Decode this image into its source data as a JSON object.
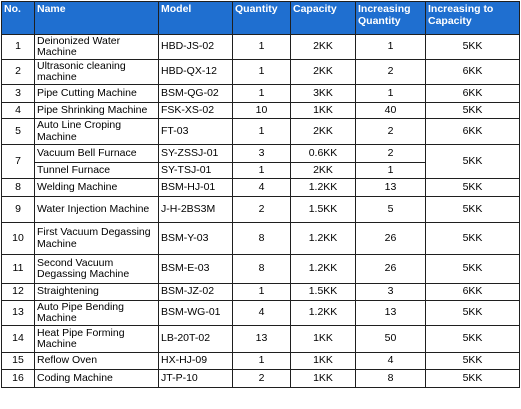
{
  "headers": {
    "no": "No.",
    "name": "Name",
    "model": "Model",
    "quantity": "Quantity",
    "capacity": "Capacity",
    "increasing_quantity": "Increasing Quantity",
    "increasing_capacity": "Increasing to Capacity"
  },
  "rows": [
    {
      "no": "1",
      "name": "Deinonized Water Machine",
      "model": "HBD-JS-02",
      "quantity": "1",
      "capacity": "2KK",
      "increasing_quantity": "1",
      "increasing_capacity": "5KK"
    },
    {
      "no": "2",
      "name": "Ultrasonic cleaning machine",
      "model": "HBD-QX-12",
      "quantity": "1",
      "capacity": "2KK",
      "increasing_quantity": "2",
      "increasing_capacity": "6KK"
    },
    {
      "no": "3",
      "name": "Pipe Cutting Machine",
      "model": "BSM-QG-02",
      "quantity": "1",
      "capacity": "3KK",
      "increasing_quantity": "1",
      "increasing_capacity": "6KK"
    },
    {
      "no": "4",
      "name": "Pipe Shrinking Machine",
      "model": "FSK-XS-02",
      "quantity": "10",
      "capacity": "1KK",
      "increasing_quantity": "40",
      "increasing_capacity": "5KK"
    },
    {
      "no": "5",
      "name": "Auto Line Croping Machine",
      "model": "FT-03",
      "quantity": "1",
      "capacity": "2KK",
      "increasing_quantity": "2",
      "increasing_capacity": "6KK"
    },
    {
      "no": "7",
      "name": "Vacuum Bell Furnace",
      "model": "SY-ZSSJ-01",
      "quantity": "3",
      "capacity": "0.6KK",
      "increasing_quantity": "2",
      "increasing_capacity": "5KK"
    },
    {
      "no": "",
      "name": "Tunnel Furnace",
      "model": "SY-TSJ-01",
      "quantity": "1",
      "capacity": "2KK",
      "increasing_quantity": "1",
      "increasing_capacity": ""
    },
    {
      "no": "8",
      "name": "Welding Machine",
      "model": "BSM-HJ-01",
      "quantity": "4",
      "capacity": "1.2KK",
      "increasing_quantity": "13",
      "increasing_capacity": "5KK"
    },
    {
      "no": "9",
      "name": "Water Injection Machine",
      "model": "J-H-2BS3M",
      "quantity": "2",
      "capacity": "1.5KK",
      "increasing_quantity": "5",
      "increasing_capacity": "5KK"
    },
    {
      "no": "10",
      "name": "First Vacuum Degassing Machine",
      "model": "BSM-Y-03",
      "quantity": "8",
      "capacity": "1.2KK",
      "increasing_quantity": "26",
      "increasing_capacity": "5KK"
    },
    {
      "no": "11",
      "name": "Second Vacuum Degassing Machine",
      "model": "BSM-E-03",
      "quantity": "8",
      "capacity": "1.2KK",
      "increasing_quantity": "26",
      "increasing_capacity": "5KK"
    },
    {
      "no": "12",
      "name": "Straightening",
      "model": "BSM-JZ-02",
      "quantity": "1",
      "capacity": "1.5KK",
      "increasing_quantity": "3",
      "increasing_capacity": "6KK"
    },
    {
      "no": "13",
      "name": "Auto Pipe Bending Machine",
      "model": "BSM-WG-01",
      "quantity": "4",
      "capacity": "1.2KK",
      "increasing_quantity": "13",
      "increasing_capacity": "5KK"
    },
    {
      "no": "14",
      "name": "Heat Pipe Forming Machine",
      "model": "LB-20T-02",
      "quantity": "13",
      "capacity": "1KK",
      "increasing_quantity": "50",
      "increasing_capacity": "5KK"
    },
    {
      "no": "15",
      "name": "Reflow  Oven",
      "model": "HX-HJ-09",
      "quantity": "1",
      "capacity": "1KK",
      "increasing_quantity": "4",
      "increasing_capacity": "5KK"
    },
    {
      "no": "16",
      "name": "Coding Machine",
      "model": "JT-P-10",
      "quantity": "2",
      "capacity": "1KK",
      "increasing_quantity": "8",
      "increasing_capacity": "5KK"
    }
  ],
  "colors": {
    "header_background": "#1f6fd0",
    "header_text": "#ffffff",
    "border": "#1f1f1f"
  }
}
